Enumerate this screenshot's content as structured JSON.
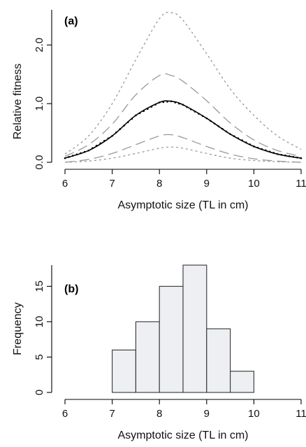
{
  "chart_data": [
    {
      "type": "line",
      "panel_label": "(a)",
      "xlabel": "Asymptotic size (TL in cm)",
      "ylabel": "Relative fitness",
      "xlim": [
        6,
        11
      ],
      "ylim": [
        0,
        2.6
      ],
      "xticks": [
        "6",
        "7",
        "8",
        "9",
        "10",
        "11"
      ],
      "yticks": [
        "0.0",
        "1.0",
        "2.0"
      ],
      "ytick_values": [
        0,
        1,
        2
      ],
      "x": [
        6.0,
        6.5,
        7.0,
        7.5,
        8.0,
        8.25,
        8.5,
        9.0,
        9.5,
        10.0,
        10.5,
        11.0
      ],
      "series": [
        {
          "style": "solid",
          "color": "#000000",
          "values": [
            0.07,
            0.2,
            0.45,
            0.8,
            1.02,
            1.04,
            0.98,
            0.75,
            0.48,
            0.27,
            0.14,
            0.07
          ]
        },
        {
          "style": "dotted-points",
          "color": "#000000",
          "values": [
            0.07,
            0.2,
            0.45,
            0.8,
            1.02,
            1.04,
            0.98,
            0.75,
            0.48,
            0.27,
            0.14,
            0.07
          ]
        },
        {
          "style": "long-dash",
          "color": "#999999",
          "values": [
            0.1,
            0.3,
            0.65,
            1.15,
            1.48,
            1.48,
            1.38,
            1.05,
            0.67,
            0.38,
            0.2,
            0.1
          ]
        },
        {
          "style": "long-dash",
          "color": "#999999",
          "values": [
            0.0,
            0.05,
            0.15,
            0.3,
            0.45,
            0.47,
            0.42,
            0.27,
            0.14,
            0.06,
            0.02,
            0.0
          ]
        },
        {
          "style": "short-dash",
          "color": "#999999",
          "values": [
            0.14,
            0.45,
            1.0,
            1.75,
            2.45,
            2.55,
            2.42,
            1.85,
            1.25,
            0.8,
            0.45,
            0.22
          ]
        },
        {
          "style": "short-dash",
          "color": "#999999",
          "values": [
            0.0,
            0.02,
            0.07,
            0.15,
            0.24,
            0.26,
            0.24,
            0.15,
            0.07,
            0.03,
            0.01,
            0.0
          ]
        }
      ]
    },
    {
      "type": "bar",
      "panel_label": "(b)",
      "xlabel": "Asymptotic size (TL in cm)",
      "ylabel": "Frequency",
      "xlim": [
        6,
        11
      ],
      "ylim": [
        0,
        18
      ],
      "xticks": [
        "6",
        "7",
        "8",
        "9",
        "10",
        "11"
      ],
      "yticks": [
        "0",
        "5",
        "10",
        "15"
      ],
      "ytick_values": [
        0,
        5,
        10,
        15
      ],
      "bins": [
        [
          7.0,
          7.5
        ],
        [
          7.5,
          8.0
        ],
        [
          8.0,
          8.5
        ],
        [
          8.5,
          9.0
        ],
        [
          9.0,
          9.5
        ],
        [
          9.5,
          10.0
        ]
      ],
      "values": [
        6,
        10,
        15,
        18,
        9,
        3
      ],
      "bar_color": "#eeeff2",
      "edge_color": "#333333"
    }
  ]
}
